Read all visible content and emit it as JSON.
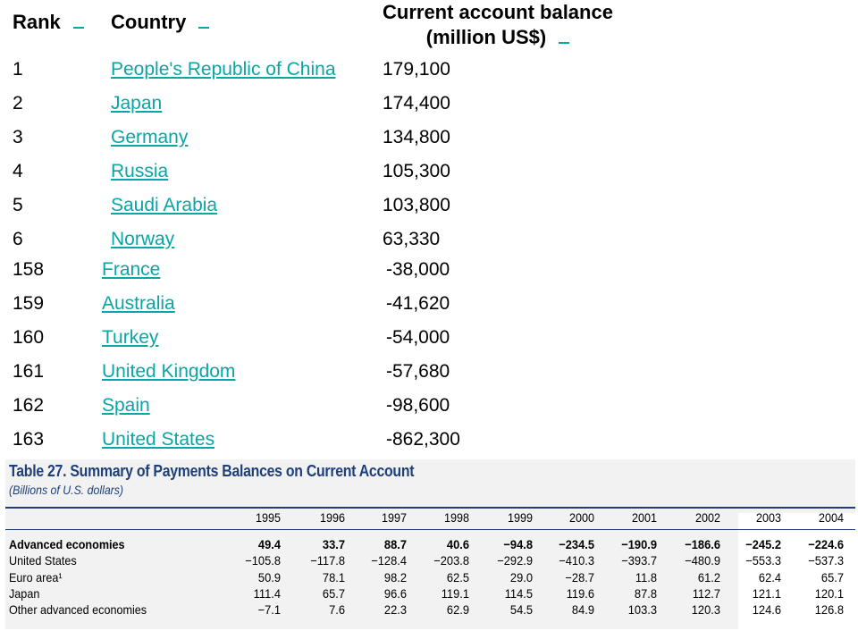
{
  "header": {
    "rank": "Rank",
    "country": "Country",
    "balance_line1": "Current account balance",
    "balance_line2": "(million US$)"
  },
  "rows": [
    {
      "rank": "1",
      "country": "People's Republic of China",
      "value": "179,100"
    },
    {
      "rank": "2",
      "country": "Japan",
      "value": "174,400"
    },
    {
      "rank": "3",
      "country": "Germany",
      "value": "134,800"
    },
    {
      "rank": "4",
      "country": "Russia",
      "value": "105,300"
    },
    {
      "rank": "5",
      "country": "Saudi Arabia",
      "value": "103,800"
    },
    {
      "rank": "6",
      "country": "Norway",
      "value": "63,330"
    },
    {
      "rank": "158",
      "country": "France",
      "value": "-38,000"
    },
    {
      "rank": "159",
      "country": "Australia",
      "value": "-41,620"
    },
    {
      "rank": "160",
      "country": "Turkey",
      "value": "-54,000"
    },
    {
      "rank": "161",
      "country": "United Kingdom",
      "value": "-57,680"
    },
    {
      "rank": "162",
      "country": "Spain",
      "value": "-98,600"
    },
    {
      "rank": "163",
      "country": "United States",
      "value": "-862,300"
    }
  ],
  "table27": {
    "title": "Table 27. Summary of Payments Balances on Current Account",
    "subtitle": "(Billions of U.S. dollars)",
    "years": [
      "1995",
      "1996",
      "1997",
      "1998",
      "1999",
      "2000",
      "2001",
      "2002",
      "2003",
      "2004"
    ],
    "rows": [
      {
        "label": "Advanced economies",
        "bold": true,
        "values": [
          "49.4",
          "33.7",
          "88.7",
          "40.6",
          "−94.8",
          "−234.5",
          "−190.9",
          "−186.6",
          "−245.2",
          "−224.6"
        ]
      },
      {
        "label": "United States",
        "bold": false,
        "values": [
          "−105.8",
          "−117.8",
          "−128.4",
          "−203.8",
          "−292.9",
          "−410.3",
          "−393.7",
          "−480.9",
          "−553.3",
          "−537.3"
        ]
      },
      {
        "label": "Euro area¹",
        "bold": false,
        "values": [
          "50.9",
          "78.1",
          "98.2",
          "62.5",
          "29.0",
          "−28.7",
          "11.8",
          "61.2",
          "62.4",
          "65.7"
        ]
      },
      {
        "label": "Japan",
        "bold": false,
        "values": [
          "111.4",
          "65.7",
          "96.6",
          "119.1",
          "114.5",
          "119.6",
          "87.8",
          "112.7",
          "121.1",
          "120.1"
        ]
      },
      {
        "label": "Other advanced economies",
        "bold": false,
        "values": [
          "−7.1",
          "7.6",
          "22.3",
          "62.9",
          "54.5",
          "84.9",
          "103.3",
          "120.3",
          "124.6",
          "126.8"
        ]
      }
    ]
  }
}
